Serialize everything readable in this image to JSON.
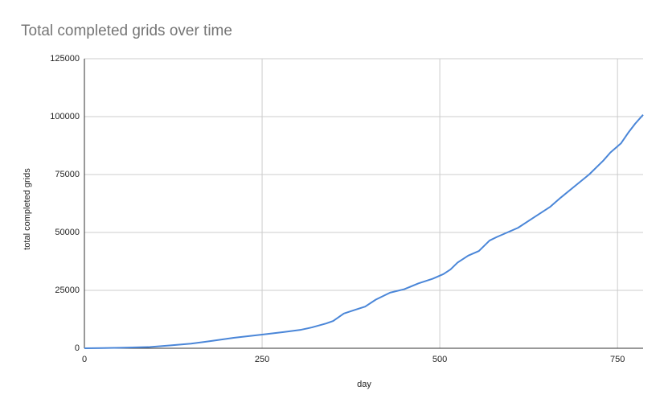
{
  "chart_data": {
    "type": "line",
    "title": "Total completed grids over time",
    "x_label": "day",
    "y_label": "total completed grids",
    "x": [
      0,
      50,
      90,
      120,
      150,
      180,
      210,
      250,
      280,
      305,
      320,
      340,
      350,
      365,
      380,
      395,
      410,
      430,
      450,
      470,
      490,
      505,
      515,
      525,
      540,
      555,
      570,
      580,
      595,
      610,
      630,
      655,
      670,
      690,
      710,
      730,
      740,
      755,
      765,
      775,
      786
    ],
    "series": [
      {
        "name": "total completed grids",
        "color": "#4a86d8",
        "values": [
          0,
          200,
          500,
          1200,
          2000,
          3200,
          4500,
          5900,
          7000,
          8000,
          9000,
          10700,
          11800,
          15000,
          16500,
          18000,
          21000,
          24000,
          25500,
          28000,
          30000,
          32000,
          34000,
          37000,
          40000,
          42000,
          46500,
          48000,
          50000,
          52000,
          56000,
          61000,
          65000,
          70000,
          75000,
          81000,
          84500,
          88500,
          93000,
          97000,
          100800
        ]
      }
    ],
    "xlim": [
      0,
      786
    ],
    "xticks": [
      0,
      250,
      500,
      750
    ],
    "ylim": [
      0,
      125000
    ],
    "yticks": [
      0,
      25000,
      50000,
      75000,
      100000,
      125000
    ],
    "grid": true
  }
}
